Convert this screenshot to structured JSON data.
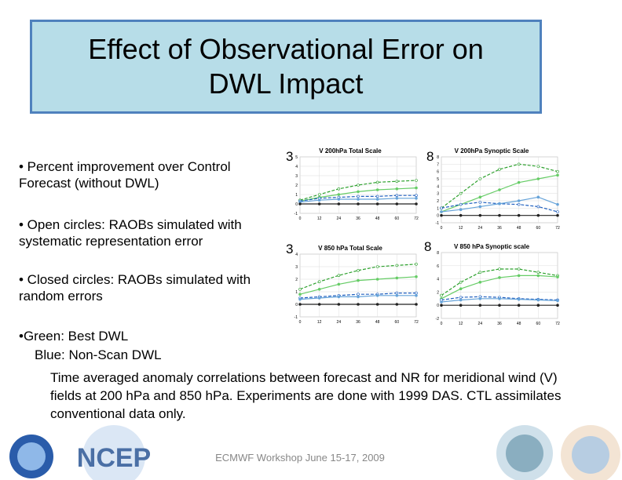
{
  "title": "Effect of Observational Error on DWL Impact",
  "bullets": [
    "• Percent improvement over Control Forecast (without DWL)",
    "• Open circles: RAOBs simulated with systematic representation error",
    "• Closed circles: RAOBs simulated with random errors"
  ],
  "legend_lines": [
    "•Green: Best DWL",
    "Blue: Non-Scan DWL"
  ],
  "caption": "Time averaged anomaly correlations between forecast and NR for meridional wind (V) fields at 200 hPa and 850 hPa. Experiments are done with 1999 DAS. CTL assimilates conventional data only.",
  "footer": "ECMWF Workshop June 15-17, 2009",
  "logo": "NCEP",
  "panels": [
    {
      "number": 3,
      "title": "V 200hPa Total Scale",
      "xticks": [
        0,
        12,
        24,
        36,
        48,
        60,
        72
      ],
      "xlim": [
        0,
        72
      ],
      "ylim": [
        -1,
        5
      ],
      "yticks": [
        -1,
        0,
        1,
        2,
        3,
        4,
        5
      ],
      "lines": [
        {
          "color": "#2ca02c",
          "dash": true,
          "values": [
            0.4,
            1.0,
            1.6,
            2.0,
            2.3,
            2.4,
            2.5
          ]
        },
        {
          "color": "#66cc66",
          "dash": false,
          "values": [
            0.3,
            0.7,
            1.0,
            1.3,
            1.5,
            1.6,
            1.7
          ]
        },
        {
          "color": "#1f5fbf",
          "dash": true,
          "values": [
            0.3,
            0.6,
            0.7,
            0.8,
            0.8,
            0.9,
            0.9
          ]
        },
        {
          "color": "#66a3d9",
          "dash": false,
          "values": [
            0.2,
            0.4,
            0.5,
            0.5,
            0.5,
            0.6,
            0.6
          ]
        },
        {
          "color": "#222222",
          "dash": false,
          "values": [
            0,
            0,
            0,
            0,
            0,
            0,
            0
          ]
        }
      ]
    },
    {
      "number": 8,
      "title": "V 200hPa Synoptic Scale",
      "xticks": [
        0,
        12,
        24,
        36,
        48,
        60,
        72
      ],
      "xlim": [
        0,
        72
      ],
      "ylim": [
        -1,
        8
      ],
      "yticks": [
        -1,
        0,
        1,
        2,
        3,
        4,
        5,
        6,
        7,
        8
      ],
      "lines": [
        {
          "color": "#2ca02c",
          "dash": true,
          "values": [
            1.0,
            3.0,
            5.0,
            6.3,
            7.0,
            6.7,
            6.0
          ]
        },
        {
          "color": "#66cc66",
          "dash": false,
          "values": [
            0.5,
            1.5,
            2.5,
            3.5,
            4.5,
            5.0,
            5.5
          ]
        },
        {
          "color": "#1f5fbf",
          "dash": true,
          "values": [
            1.0,
            1.5,
            1.8,
            1.6,
            1.5,
            1.2,
            0.5
          ]
        },
        {
          "color": "#66a3d9",
          "dash": false,
          "values": [
            0.5,
            0.8,
            1.2,
            1.6,
            2.0,
            2.5,
            1.5
          ]
        },
        {
          "color": "#222222",
          "dash": false,
          "values": [
            0,
            0,
            0,
            0,
            0,
            0,
            0
          ]
        }
      ]
    },
    {
      "number": 3,
      "title": "V 850 hPa Total Scale",
      "xticks": [
        0,
        12,
        24,
        36,
        48,
        60,
        72
      ],
      "xlim": [
        0,
        72
      ],
      "ylim": [
        -1,
        4
      ],
      "yticks": [
        -1,
        0,
        1,
        2,
        3,
        4
      ],
      "lines": [
        {
          "color": "#2ca02c",
          "dash": true,
          "values": [
            1.2,
            1.8,
            2.3,
            2.7,
            3.0,
            3.1,
            3.2
          ]
        },
        {
          "color": "#66cc66",
          "dash": false,
          "values": [
            0.8,
            1.2,
            1.6,
            1.9,
            2.0,
            2.1,
            2.2
          ]
        },
        {
          "color": "#1f5fbf",
          "dash": true,
          "values": [
            0.5,
            0.6,
            0.7,
            0.8,
            0.8,
            0.9,
            0.9
          ]
        },
        {
          "color": "#66a3d9",
          "dash": false,
          "values": [
            0.4,
            0.5,
            0.6,
            0.6,
            0.7,
            0.7,
            0.7
          ]
        },
        {
          "color": "#222222",
          "dash": false,
          "values": [
            0,
            0,
            0,
            0,
            0,
            0,
            0
          ]
        }
      ]
    },
    {
      "number": 8,
      "title": "V 850 hPa Synoptic scale",
      "xticks": [
        0,
        12,
        24,
        36,
        48,
        60,
        72
      ],
      "xlim": [
        0,
        72
      ],
      "ylim": [
        -2,
        8
      ],
      "yticks": [
        -2,
        0,
        2,
        4,
        6,
        8
      ],
      "lines": [
        {
          "color": "#2ca02c",
          "dash": true,
          "values": [
            1.5,
            3.5,
            5.0,
            5.5,
            5.5,
            5.0,
            4.5
          ]
        },
        {
          "color": "#66cc66",
          "dash": false,
          "values": [
            1.0,
            2.5,
            3.5,
            4.2,
            4.5,
            4.5,
            4.3
          ]
        },
        {
          "color": "#1f5fbf",
          "dash": true,
          "values": [
            0.8,
            1.2,
            1.3,
            1.2,
            1.0,
            0.9,
            0.8
          ]
        },
        {
          "color": "#66a3d9",
          "dash": false,
          "values": [
            0.5,
            0.8,
            1.0,
            1.0,
            0.9,
            0.8,
            0.7
          ]
        },
        {
          "color": "#222222",
          "dash": false,
          "values": [
            0,
            0,
            0,
            0,
            0,
            0,
            0
          ]
        }
      ]
    }
  ]
}
